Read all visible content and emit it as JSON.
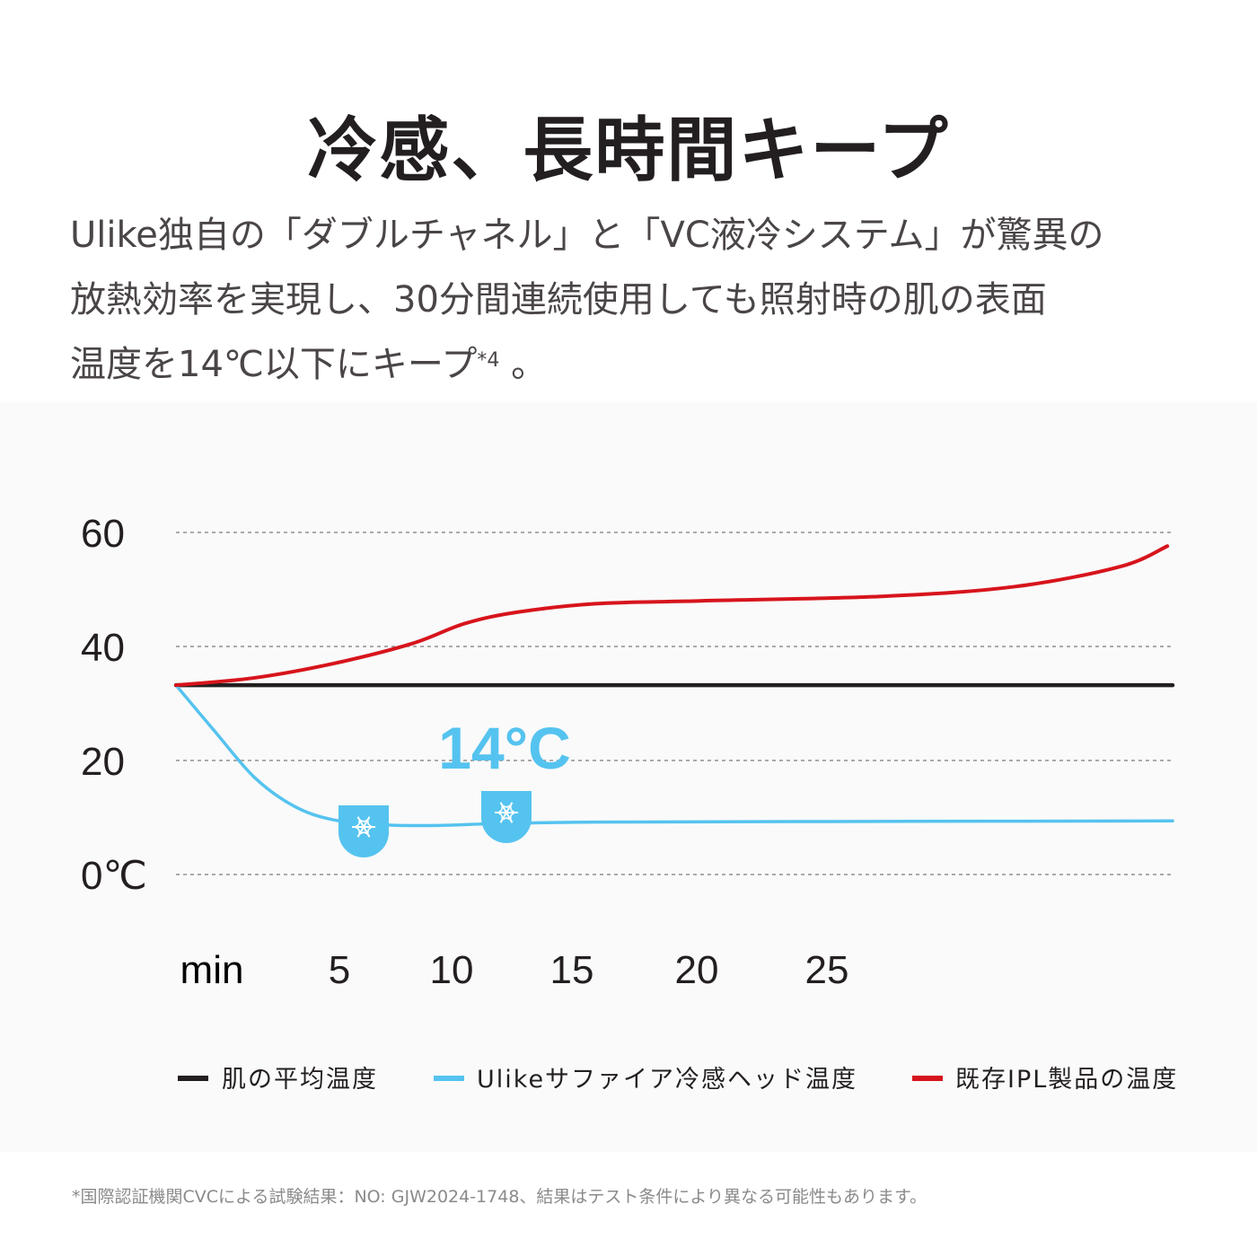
{
  "title": "冷感、長時間キープ",
  "description": {
    "line1": "Ulike独自の「ダブルチャネル」と「VC液冷システム」が驚異の",
    "line2": "放熱効率を実現し、30分間連続使用しても照射時の肌の表面",
    "line3": "温度を14℃以下にキープ",
    "sup": "*4",
    "tail": " 。"
  },
  "footnote": "*国際認証機関CVCによる試験結果：NO: GJW2024-1748、結果はテスト条件により異なる可能性もあります。",
  "colors": {
    "skin": "#231f20",
    "ulike": "#55c3ef",
    "ipl": "#d7141c",
    "grid": "#8f8f8f",
    "icon_bg": "#55c3ef"
  },
  "chart_data": {
    "type": "line",
    "title": "",
    "xlabel": "min",
    "ylabel": "",
    "y_ticks": [
      "60",
      "40",
      "20",
      "0℃"
    ],
    "y_tick_values": [
      60,
      40,
      20,
      0
    ],
    "x_ticks": [
      "5",
      "10",
      "15",
      "20",
      "25"
    ],
    "x_tick_values": [
      5,
      10,
      15,
      20,
      25
    ],
    "ylim": [
      0,
      60
    ],
    "xlim": [
      0,
      38
    ],
    "grid": true,
    "legend_position": "bottom",
    "annotation": "14°C",
    "icons": [
      "snowflake-icon",
      "snowflake-icon"
    ],
    "series": [
      {
        "name": "肌の平均温度",
        "color": "#231f20",
        "points": [
          [
            0,
            33.2
          ],
          [
            38,
            33.2
          ]
        ]
      },
      {
        "name": "Ulikeサファイア冷感ヘッド温度",
        "color": "#55c3ef",
        "points": [
          [
            0,
            33.2
          ],
          [
            1.5,
            25
          ],
          [
            3,
            17
          ],
          [
            4.5,
            12
          ],
          [
            6,
            9.6
          ],
          [
            8,
            8.7
          ],
          [
            10,
            8.6
          ],
          [
            12,
            8.9
          ],
          [
            16,
            9.2
          ],
          [
            25,
            9.3
          ],
          [
            38,
            9.4
          ]
        ]
      },
      {
        "name": "既存IPL製品の温度",
        "color": "#d7141c",
        "points": [
          [
            0,
            33.2
          ],
          [
            3,
            34.5
          ],
          [
            6,
            37
          ],
          [
            9,
            40.5
          ],
          [
            11,
            44
          ],
          [
            13,
            46
          ],
          [
            16,
            47.5
          ],
          [
            20,
            48
          ],
          [
            27,
            48.8
          ],
          [
            32,
            50.5
          ],
          [
            36,
            54
          ],
          [
            37.8,
            57.6
          ]
        ]
      }
    ]
  }
}
